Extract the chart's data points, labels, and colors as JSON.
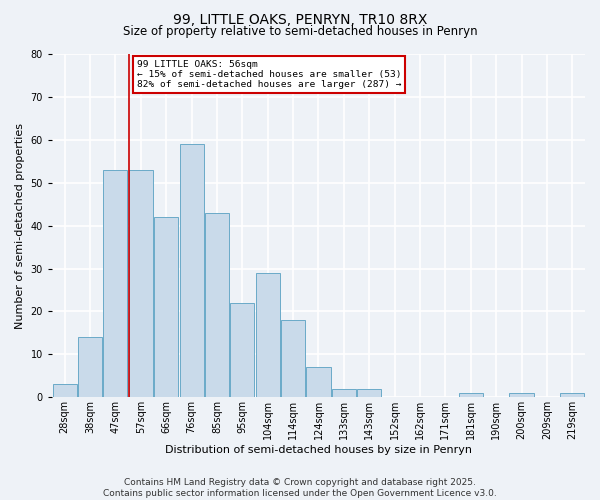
{
  "title": "99, LITTLE OAKS, PENRYN, TR10 8RX",
  "subtitle": "Size of property relative to semi-detached houses in Penryn",
  "xlabel": "Distribution of semi-detached houses by size in Penryn",
  "ylabel": "Number of semi-detached properties",
  "bar_labels": [
    "28sqm",
    "38sqm",
    "47sqm",
    "57sqm",
    "66sqm",
    "76sqm",
    "85sqm",
    "95sqm",
    "104sqm",
    "114sqm",
    "124sqm",
    "133sqm",
    "143sqm",
    "152sqm",
    "162sqm",
    "171sqm",
    "181sqm",
    "190sqm",
    "200sqm",
    "209sqm",
    "219sqm"
  ],
  "bar_values": [
    3,
    14,
    53,
    53,
    42,
    59,
    43,
    22,
    29,
    18,
    7,
    2,
    2,
    0,
    0,
    0,
    1,
    0,
    1,
    0,
    1
  ],
  "bar_color": "#c9daea",
  "bar_edge_color": "#6aaac8",
  "vline_color": "#cc0000",
  "annotation_title": "99 LITTLE OAKS: 56sqm",
  "annotation_line1": "← 15% of semi-detached houses are smaller (53)",
  "annotation_line2": "82% of semi-detached houses are larger (287) →",
  "annotation_box_color": "#ffffff",
  "annotation_box_edge": "#cc0000",
  "footer_line1": "Contains HM Land Registry data © Crown copyright and database right 2025.",
  "footer_line2": "Contains public sector information licensed under the Open Government Licence v3.0.",
  "ylim": [
    0,
    80
  ],
  "background_color": "#eef2f7",
  "grid_color": "#ffffff",
  "title_fontsize": 10,
  "subtitle_fontsize": 8.5,
  "axis_label_fontsize": 8,
  "tick_fontsize": 7,
  "footer_fontsize": 6.5
}
